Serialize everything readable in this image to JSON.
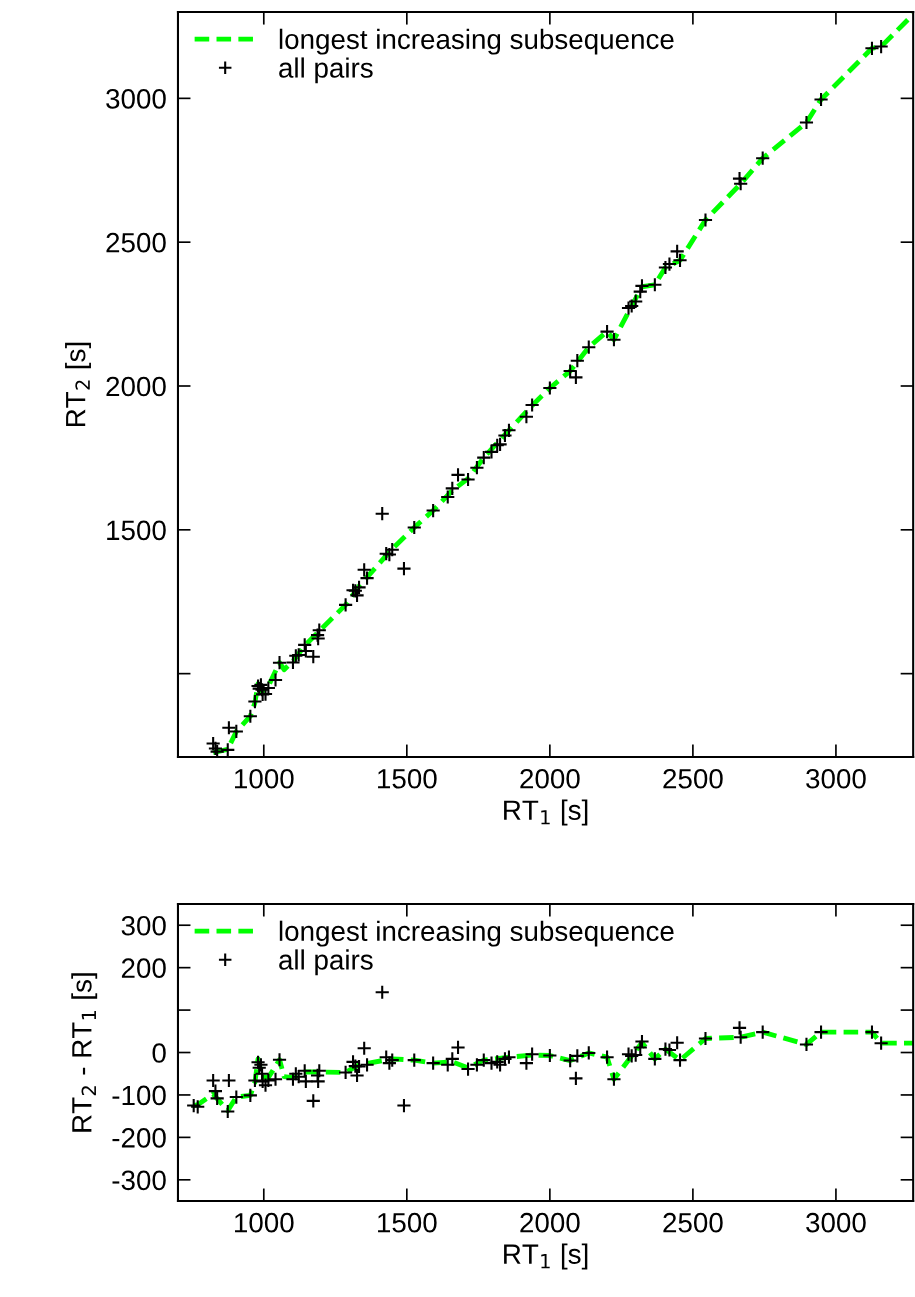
{
  "chart_data": [
    {
      "type": "scatter",
      "xlabel": "RT$_{1}$ [s]",
      "ylabel": "RT$_{2}$ [s]",
      "xlim": [
        700,
        3270
      ],
      "ylim": [
        710,
        3300
      ],
      "xticks": [
        1000,
        1500,
        2000,
        2500,
        3000
      ],
      "yticks": [
        {
          "value": 1000,
          "label": null
        },
        1500,
        2000,
        2500,
        3000
      ],
      "grid": false,
      "legend": "top left",
      "series": [
        {
          "name": "longest increasing subsequence",
          "type": "line",
          "color": "#00ff00",
          "line_style": "dashed",
          "marker": "none",
          "x": [
            823,
            874,
            904,
            953,
            969,
            980,
            994,
            1016,
            1055,
            1071,
            1102,
            1143,
            1194,
            1286,
            1333,
            1449,
            1526,
            1592,
            1659,
            1714,
            1769,
            1857,
            1938,
            2000,
            2071,
            2136,
            2200,
            2224,
            2286,
            2322,
            2367,
            2404,
            2455,
            2544,
            2667,
            2744,
            2897,
            2948,
            3126,
            3158,
            3270
          ],
          "values": [
            725,
            737,
            799,
            852,
            899,
            965,
            937,
            957,
            1038,
            1014,
            1043,
            1097,
            1148,
            1239,
            1304,
            1434,
            1508,
            1567,
            1637,
            1678,
            1751,
            1846,
            1932,
            1993,
            2052,
            2135,
            2189,
            2161,
            2278,
            2345,
            2352,
            2412,
            2437,
            2577,
            2703,
            2792,
            2916,
            2996,
            3174,
            3180,
            3292
          ]
        },
        {
          "name": "all pairs",
          "color": "#000000",
          "marker": "cross",
          "x": [
            823,
            831,
            837,
            874,
            878,
            904,
            953,
            969,
            980,
            984,
            990,
            994,
            996,
            1006,
            1016,
            1041,
            1055,
            1102,
            1112,
            1122,
            1143,
            1147,
            1173,
            1188,
            1190,
            1194,
            1286,
            1312,
            1320,
            1326,
            1333,
            1351,
            1361,
            1414,
            1428,
            1439,
            1449,
            1490,
            1526,
            1592,
            1643,
            1659,
            1679,
            1714,
            1745,
            1769,
            1796,
            1816,
            1826,
            1843,
            1857,
            1918,
            1938,
            2000,
            2071,
            2091,
            2096,
            2136,
            2200,
            2224,
            2275,
            2286,
            2300,
            2316,
            2322,
            2367,
            2404,
            2418,
            2445,
            2455,
            2544,
            2663,
            2667,
            2744,
            2897,
            2948,
            3126,
            3158
          ],
          "values": [
            757,
            740,
            729,
            735,
            812,
            799,
            852,
            903,
            957,
            948,
            961,
            944,
            928,
            929,
            950,
            978,
            1038,
            1039,
            1062,
            1065,
            1100,
            1079,
            1059,
            1134,
            1122,
            1151,
            1239,
            1290,
            1288,
            1272,
            1300,
            1361,
            1332,
            1556,
            1417,
            1414,
            1431,
            1365,
            1508,
            1567,
            1614,
            1644,
            1691,
            1675,
            1716,
            1751,
            1771,
            1794,
            1797,
            1828,
            1846,
            1893,
            1934,
            1993,
            2052,
            2030,
            2088,
            2135,
            2189,
            2161,
            2271,
            2278,
            2294,
            2328,
            2348,
            2352,
            2412,
            2424,
            2468,
            2437,
            2577,
            2721,
            2703,
            2792,
            2916,
            2996,
            3174,
            3180
          ]
        }
      ]
    },
    {
      "type": "scatter",
      "xlabel": "RT$_{1}$ [s]",
      "ylabel": "RT$_{2}$ - RT$_{1}$ [s]",
      "xlim": [
        700,
        3270
      ],
      "ylim": [
        -350,
        350
      ],
      "xticks": [
        1000,
        1500,
        2000,
        2500,
        3000
      ],
      "yticks": [
        -300,
        -200,
        -100,
        0,
        {
          "value": 100,
          "label": null
        },
        200,
        300
      ],
      "grid": false,
      "legend": "top left",
      "series": [
        {
          "name": "longest increasing subsequence",
          "type": "line",
          "color": "#00ff00",
          "line_style": "dashed",
          "marker": "none",
          "x": [
            755,
            769,
            823,
            874,
            904,
            953,
            969,
            980,
            994,
            1016,
            1055,
            1071,
            1102,
            1143,
            1194,
            1286,
            1333,
            1449,
            1526,
            1592,
            1659,
            1714,
            1769,
            1857,
            1938,
            2000,
            2071,
            2136,
            2200,
            2224,
            2286,
            2322,
            2367,
            2404,
            2455,
            2544,
            2667,
            2744,
            2897,
            2948,
            3126,
            3158,
            3270
          ],
          "values": [
            -125,
            -123,
            -98,
            -137,
            -105,
            -101,
            -70,
            -15,
            -57,
            -59,
            -17,
            -57,
            -59,
            -46,
            -46,
            -47,
            -29,
            -15,
            -18,
            -25,
            -22,
            -36,
            -18,
            -11,
            -6,
            -7,
            -19,
            -1,
            -11,
            -63,
            -8,
            23,
            -15,
            8,
            -18,
            33,
            36,
            48,
            19,
            48,
            48,
            22,
            22
          ]
        },
        {
          "name": "all pairs",
          "color": "#000000",
          "marker": "cross",
          "x": [
            755,
            769,
            823,
            831,
            837,
            874,
            878,
            904,
            953,
            969,
            980,
            984,
            990,
            994,
            996,
            1006,
            1016,
            1041,
            1055,
            1102,
            1112,
            1122,
            1143,
            1147,
            1173,
            1188,
            1190,
            1194,
            1286,
            1312,
            1320,
            1326,
            1333,
            1351,
            1361,
            1414,
            1428,
            1439,
            1449,
            1490,
            1526,
            1592,
            1643,
            1659,
            1679,
            1714,
            1745,
            1769,
            1796,
            1816,
            1826,
            1843,
            1857,
            1918,
            1938,
            2000,
            2071,
            2091,
            2096,
            2136,
            2200,
            2224,
            2275,
            2286,
            2300,
            2316,
            2322,
            2367,
            2404,
            2418,
            2445,
            2455,
            2544,
            2663,
            2667,
            2744,
            2897,
            2948,
            3126,
            3158
          ],
          "values": [
            -125,
            -128,
            -66,
            -91,
            -108,
            -139,
            -66,
            -105,
            -101,
            -66,
            -23,
            -36,
            -29,
            -50,
            -68,
            -77,
            -66,
            -63,
            -17,
            -63,
            -50,
            -57,
            -43,
            -68,
            -114,
            -54,
            -68,
            -43,
            -47,
            -22,
            -32,
            -54,
            -33,
            10,
            -29,
            142,
            -11,
            -25,
            -18,
            -125,
            -18,
            -25,
            -29,
            -15,
            12,
            -39,
            -29,
            -18,
            -25,
            -22,
            -29,
            -15,
            -11,
            -25,
            -4,
            -7,
            -19,
            -61,
            -8,
            -1,
            -11,
            -63,
            -4,
            -8,
            -6,
            12,
            26,
            -15,
            8,
            6,
            23,
            -18,
            33,
            58,
            36,
            48,
            19,
            48,
            48,
            22
          ]
        }
      ]
    }
  ]
}
